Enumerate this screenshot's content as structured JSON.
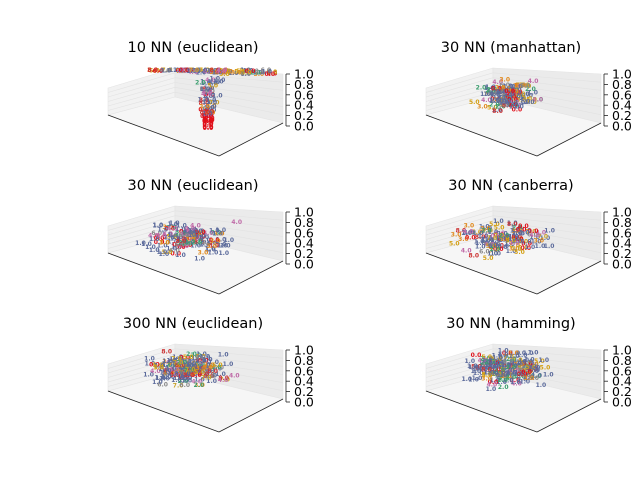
{
  "palette": {
    "1.0": "#5b6a9b",
    "2.0": "#3a9e6e",
    "3.0": "#e08a1e",
    "4.0": "#c06aa8",
    "5.0": "#d4a015",
    "6.0": "#888888",
    "7.0": "#c8a22a",
    "8.0": "#cc3333",
    "0.0": "#e0101a"
  },
  "chart_data": [
    {
      "type": "scatter",
      "title": "10 NN (euclidean)",
      "projection": "3d",
      "zticks": [
        "0.0",
        "0.2",
        "0.4",
        "0.6",
        "0.8",
        "1.0"
      ],
      "zlim": [
        0,
        1
      ],
      "point_labels": [
        "1.0",
        "2.0",
        "3.0",
        "4.0",
        "5.0",
        "6.0",
        "7.0",
        "8.0",
        "0.0"
      ],
      "shape": "funnel",
      "seed": 11
    },
    {
      "type": "scatter",
      "title": "30 NN (manhattan)",
      "projection": "3d",
      "zticks": [
        "0.0",
        "0.2",
        "0.4",
        "0.6",
        "0.8",
        "1.0"
      ],
      "zlim": [
        0,
        1
      ],
      "point_labels": [
        "1.0",
        "2.0",
        "3.0",
        "4.0",
        "5.0",
        "6.0",
        "7.0",
        "8.0",
        "0.0"
      ],
      "shape": "blob",
      "seed": 23
    },
    {
      "type": "scatter",
      "title": "30 NN (euclidean)",
      "projection": "3d",
      "zticks": [
        "0.0",
        "0.2",
        "0.4",
        "0.6",
        "0.8",
        "1.0"
      ],
      "zlim": [
        0,
        1
      ],
      "point_labels": [
        "1.0",
        "2.0",
        "3.0",
        "4.0",
        "5.0",
        "6.0",
        "7.0",
        "8.0",
        "0.0"
      ],
      "shape": "spread",
      "seed": 37
    },
    {
      "type": "scatter",
      "title": "30 NN (canberra)",
      "projection": "3d",
      "zticks": [
        "0.0",
        "0.2",
        "0.4",
        "0.6",
        "0.8",
        "1.0"
      ],
      "zlim": [
        0,
        1
      ],
      "point_labels": [
        "1.0",
        "2.0",
        "3.0",
        "4.0",
        "5.0",
        "6.0",
        "7.0",
        "8.0",
        "0.0"
      ],
      "shape": "spread",
      "seed": 41
    },
    {
      "type": "scatter",
      "title": "300 NN (euclidean)",
      "projection": "3d",
      "zticks": [
        "0.0",
        "0.2",
        "0.4",
        "0.6",
        "0.8",
        "1.0"
      ],
      "zlim": [
        0,
        1
      ],
      "point_labels": [
        "1.0",
        "2.0",
        "3.0",
        "4.0",
        "5.0",
        "6.0",
        "7.0",
        "8.0",
        "0.0"
      ],
      "shape": "dense",
      "seed": 53
    },
    {
      "type": "scatter",
      "title": "30 NN (hamming)",
      "projection": "3d",
      "zticks": [
        "0.0",
        "0.2",
        "0.4",
        "0.6",
        "0.8",
        "1.0"
      ],
      "zlim": [
        0,
        1
      ],
      "point_labels": [
        "1.0",
        "2.0",
        "3.0",
        "4.0",
        "5.0",
        "6.0",
        "7.0",
        "8.0",
        "0.0"
      ],
      "shape": "dense",
      "seed": 67
    }
  ]
}
